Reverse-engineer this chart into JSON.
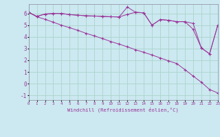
{
  "xlabel": "Windchill (Refroidissement éolien,°C)",
  "background_color": "#cce8f0",
  "grid_color": "#aad4cc",
  "line_color": "#993399",
  "ylim": [
    -1.4,
    6.8
  ],
  "xlim": [
    0,
    23
  ],
  "yticks": [
    6,
    5,
    4,
    3,
    2,
    1,
    0,
    -1
  ],
  "x_ticks": [
    0,
    1,
    2,
    3,
    4,
    5,
    6,
    7,
    8,
    9,
    10,
    11,
    12,
    13,
    14,
    15,
    16,
    17,
    18,
    19,
    20,
    21,
    22,
    23
  ],
  "series1": [
    6.1,
    5.75,
    5.95,
    6.0,
    6.0,
    5.9,
    5.85,
    5.8,
    5.78,
    5.75,
    5.72,
    5.7,
    5.92,
    6.1,
    6.05,
    5.0,
    5.48,
    5.42,
    5.3,
    5.3,
    5.15,
    3.05,
    2.55,
    5.0
  ],
  "series2": [
    6.1,
    5.75,
    5.95,
    6.0,
    6.0,
    5.9,
    5.85,
    5.8,
    5.78,
    5.75,
    5.72,
    5.7,
    6.55,
    6.1,
    6.05,
    5.0,
    5.48,
    5.42,
    5.3,
    5.3,
    4.65,
    3.05,
    2.55,
    5.0
  ],
  "series3": [
    6.1,
    5.72,
    5.5,
    5.25,
    5.0,
    4.78,
    4.55,
    4.3,
    4.08,
    3.85,
    3.6,
    3.38,
    3.15,
    2.9,
    2.68,
    2.45,
    2.2,
    1.95,
    1.72,
    1.2,
    0.65,
    0.12,
    -0.5,
    -0.8
  ]
}
